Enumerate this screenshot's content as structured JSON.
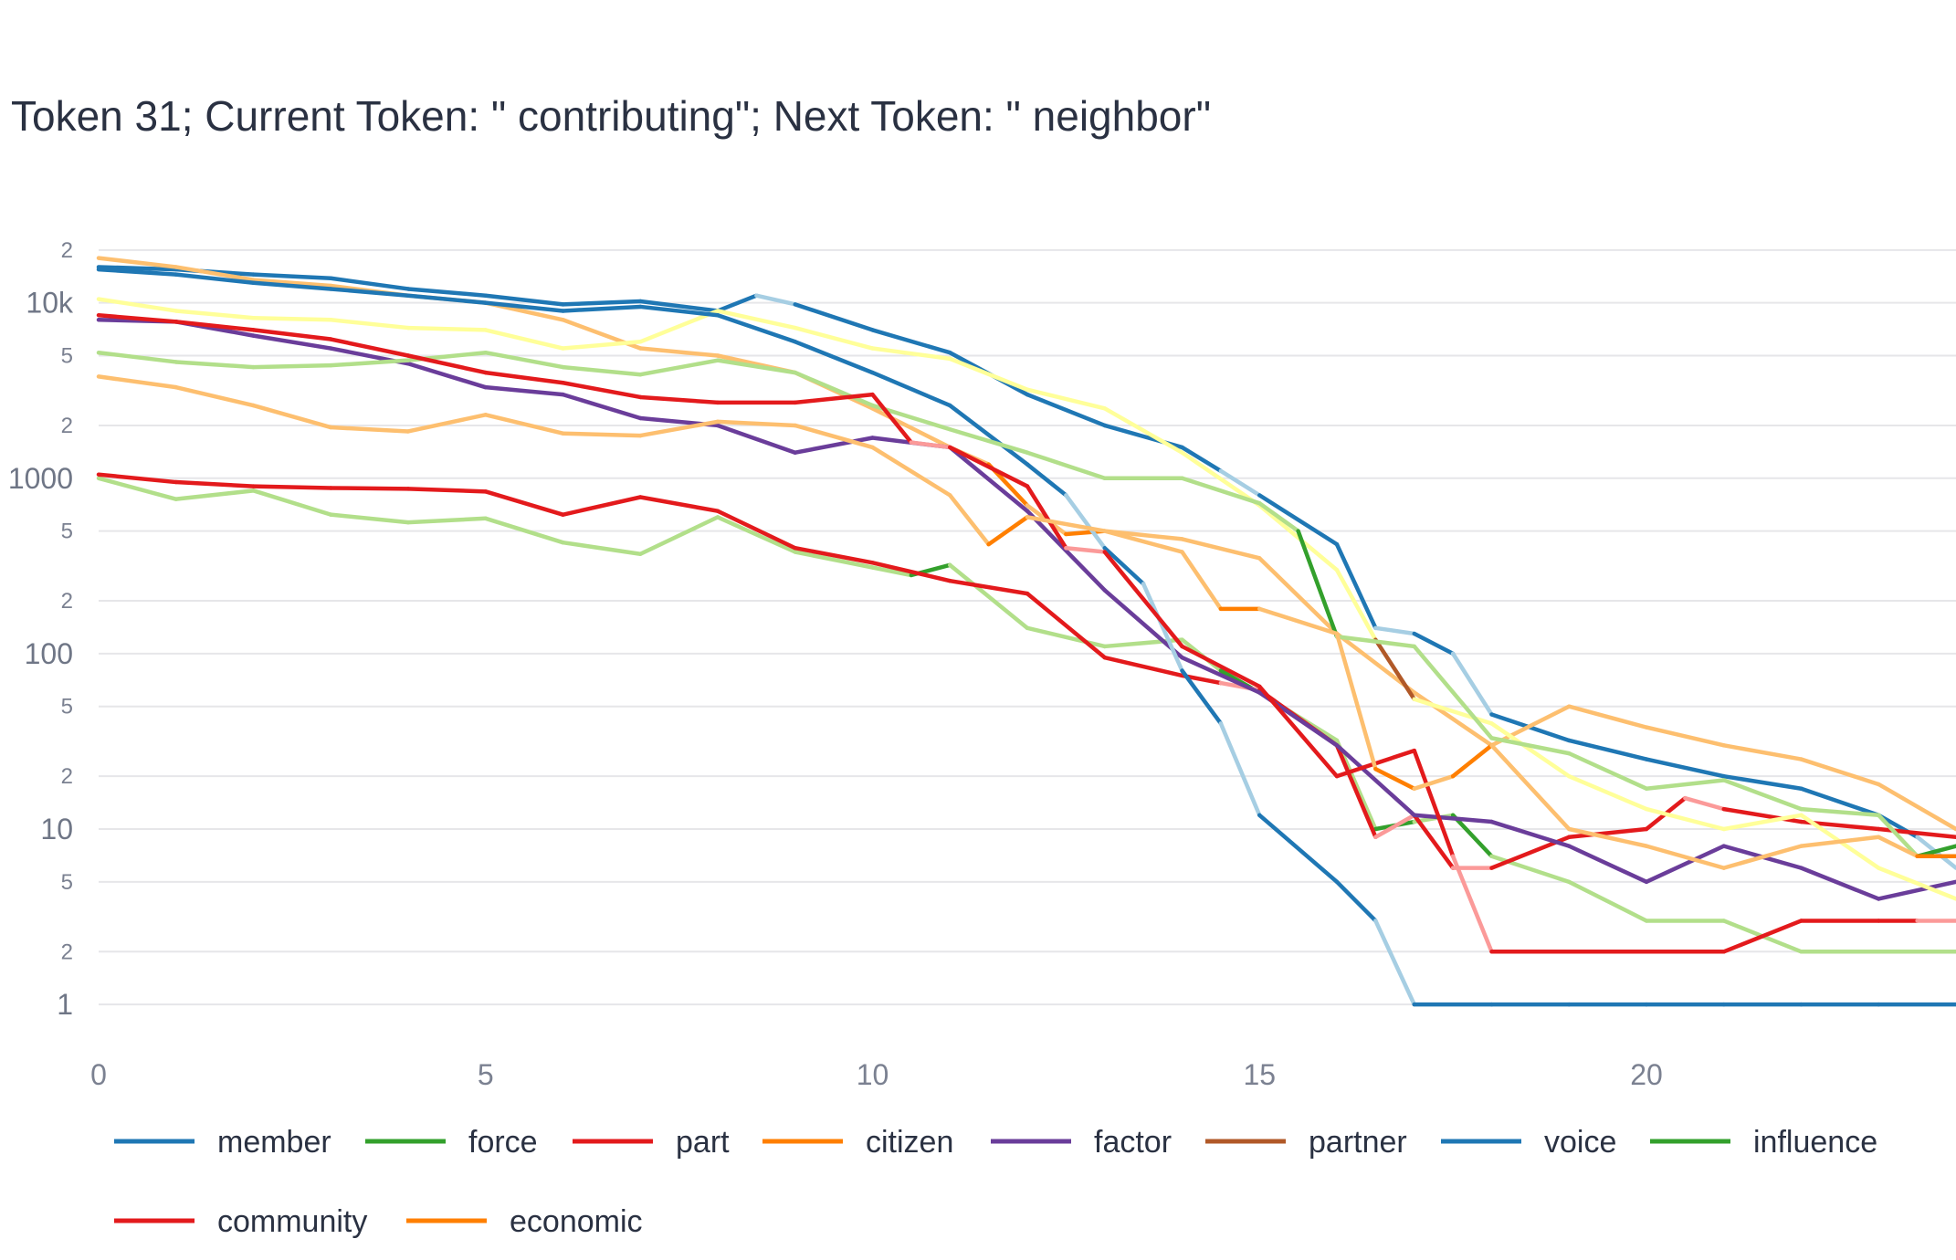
{
  "chart_data": {
    "type": "line",
    "title": "Token 31; Current Token: \" contributing\"; Next Token: \" neighbor\"",
    "xlabel": "",
    "ylabel": "",
    "y_scale": "log",
    "ylim": [
      0.55,
      30000
    ],
    "xlim": [
      0,
      24
    ],
    "x_ticks": [
      0,
      5,
      10,
      15,
      20
    ],
    "y_major_ticks": [
      {
        "value": 1,
        "label": "1"
      },
      {
        "value": 10,
        "label": "10"
      },
      {
        "value": 100,
        "label": "100"
      },
      {
        "value": 1000,
        "label": "1000"
      },
      {
        "value": 10000,
        "label": "10k"
      }
    ],
    "y_minor_ticks": [
      {
        "value": 2,
        "label": "2"
      },
      {
        "value": 5,
        "label": "5"
      },
      {
        "value": 20,
        "label": "2"
      },
      {
        "value": 50,
        "label": "5"
      },
      {
        "value": 200,
        "label": "2"
      },
      {
        "value": 500,
        "label": "5"
      },
      {
        "value": 2000,
        "label": "2"
      },
      {
        "value": 5000,
        "label": "5"
      },
      {
        "value": 20000,
        "label": "2"
      }
    ],
    "grid": true,
    "legend_position": "bottom",
    "series": [
      {
        "name": "member",
        "color": "#1f77b4",
        "light": "#a6cee3",
        "points": [
          [
            0,
            16000
          ],
          [
            1,
            15500
          ],
          [
            2,
            14500
          ],
          [
            3,
            13800
          ],
          [
            4,
            12000
          ],
          [
            5,
            11000
          ],
          [
            6,
            9800
          ],
          [
            7,
            10200
          ],
          [
            8,
            9000
          ],
          [
            8.5,
            11000
          ],
          [
            9,
            9800
          ],
          [
            10,
            7000
          ],
          [
            11,
            5200
          ],
          [
            12,
            3000
          ],
          [
            13,
            2000
          ],
          [
            14,
            1500
          ],
          [
            14.5,
            1100
          ],
          [
            15,
            800
          ],
          [
            16,
            420
          ],
          [
            16.5,
            140
          ],
          [
            17,
            130
          ],
          [
            17.5,
            100
          ],
          [
            18,
            45
          ],
          [
            19,
            32
          ],
          [
            20,
            25
          ],
          [
            21,
            20
          ],
          [
            22,
            17
          ],
          [
            23,
            12
          ],
          [
            23.5,
            9
          ],
          [
            24,
            6
          ]
        ]
      },
      {
        "name": "force",
        "color": "#33a02c",
        "light": "#b2df8a",
        "points": [
          [
            0,
            1000
          ],
          [
            1,
            760
          ],
          [
            2,
            850
          ],
          [
            3,
            620
          ],
          [
            4,
            560
          ],
          [
            5,
            590
          ],
          [
            6,
            430
          ],
          [
            7,
            370
          ],
          [
            8,
            600
          ],
          [
            9,
            380
          ],
          [
            10,
            310
          ],
          [
            10.5,
            280
          ],
          [
            11,
            320
          ],
          [
            12,
            140
          ],
          [
            13,
            110
          ],
          [
            14,
            120
          ],
          [
            14.5,
            80
          ],
          [
            15,
            60
          ],
          [
            16,
            32
          ],
          [
            16.5,
            10
          ],
          [
            17,
            11
          ],
          [
            17.5,
            12
          ],
          [
            18,
            7
          ],
          [
            19,
            5
          ],
          [
            20,
            3
          ],
          [
            21,
            3
          ],
          [
            22,
            2
          ],
          [
            24,
            2
          ]
        ]
      },
      {
        "name": "part",
        "color": "#e31a1c",
        "light": "#fb9a99",
        "points": [
          [
            0,
            1050
          ],
          [
            1,
            950
          ],
          [
            2,
            900
          ],
          [
            3,
            880
          ],
          [
            4,
            870
          ],
          [
            5,
            840
          ],
          [
            6,
            620
          ],
          [
            7,
            780
          ],
          [
            8,
            650
          ],
          [
            9,
            400
          ],
          [
            10,
            330
          ],
          [
            11,
            260
          ],
          [
            12,
            220
          ],
          [
            13,
            95
          ],
          [
            14,
            75
          ],
          [
            14.5,
            68
          ],
          [
            15,
            62
          ],
          [
            16,
            30
          ],
          [
            16.5,
            9
          ],
          [
            17,
            12
          ],
          [
            17.5,
            6
          ],
          [
            18,
            6
          ],
          [
            19,
            9
          ],
          [
            20,
            10
          ],
          [
            20.5,
            15
          ],
          [
            21,
            13
          ],
          [
            22,
            11
          ],
          [
            23,
            10
          ],
          [
            24,
            9
          ]
        ]
      },
      {
        "name": "citizen",
        "color": "#ff7f00",
        "light": "#fdbf6f",
        "points": [
          [
            0,
            18000
          ],
          [
            1,
            16000
          ],
          [
            2,
            13500
          ],
          [
            3,
            12500
          ],
          [
            4,
            11000
          ],
          [
            5,
            10000
          ],
          [
            6,
            8000
          ],
          [
            7,
            5500
          ],
          [
            8,
            5000
          ],
          [
            9,
            4000
          ],
          [
            10,
            2500
          ],
          [
            11,
            1500
          ],
          [
            11.5,
            1200
          ],
          [
            12,
            700
          ],
          [
            12.5,
            480
          ],
          [
            13,
            500
          ],
          [
            14,
            450
          ],
          [
            15,
            350
          ],
          [
            16,
            130
          ],
          [
            17,
            60
          ],
          [
            18,
            30
          ],
          [
            19,
            50
          ],
          [
            20,
            38
          ],
          [
            21,
            30
          ],
          [
            22,
            25
          ],
          [
            23,
            18
          ],
          [
            24,
            10
          ]
        ]
      },
      {
        "name": "factor",
        "color": "#6a3d9a",
        "light": "#cab2d6",
        "points": [
          [
            0,
            8000
          ],
          [
            1,
            7800
          ],
          [
            2,
            6500
          ],
          [
            3,
            5500
          ],
          [
            4,
            4500
          ],
          [
            5,
            3300
          ],
          [
            6,
            3000
          ],
          [
            7,
            2200
          ],
          [
            8,
            2000
          ],
          [
            9,
            1400
          ],
          [
            10,
            1700
          ],
          [
            11,
            1500
          ],
          [
            12,
            650
          ],
          [
            13,
            230
          ],
          [
            14,
            95
          ],
          [
            15,
            60
          ],
          [
            16,
            30
          ],
          [
            17,
            12
          ],
          [
            18,
            11
          ],
          [
            19,
            8
          ],
          [
            20,
            5
          ],
          [
            21,
            8
          ],
          [
            22,
            6
          ],
          [
            23,
            4
          ],
          [
            24,
            5
          ]
        ]
      },
      {
        "name": "partner",
        "color": "#b15928",
        "light": "#ffff99",
        "points": [
          [
            0,
            10500
          ],
          [
            1,
            9000
          ],
          [
            2,
            8200
          ],
          [
            3,
            8000
          ],
          [
            4,
            7200
          ],
          [
            5,
            7000
          ],
          [
            6,
            5500
          ],
          [
            7,
            6000
          ],
          [
            8,
            9000
          ],
          [
            9,
            7200
          ],
          [
            10,
            5500
          ],
          [
            11,
            4800
          ],
          [
            12,
            3200
          ],
          [
            13,
            2500
          ],
          [
            14,
            1400
          ],
          [
            15,
            700
          ],
          [
            16,
            300
          ],
          [
            16.5,
            120
          ],
          [
            17,
            55
          ],
          [
            18,
            40
          ],
          [
            19,
            20
          ],
          [
            20,
            13
          ],
          [
            21,
            10
          ],
          [
            22,
            12
          ],
          [
            23,
            6
          ],
          [
            24,
            4
          ]
        ]
      },
      {
        "name": "voice",
        "color": "#1f77b4",
        "light": "#a6cee3",
        "points": [
          [
            0,
            15500
          ],
          [
            1,
            14500
          ],
          [
            2,
            13000
          ],
          [
            3,
            12000
          ],
          [
            4,
            11000
          ],
          [
            5,
            10000
          ],
          [
            6,
            9000
          ],
          [
            7,
            9500
          ],
          [
            8,
            8500
          ],
          [
            9,
            6000
          ],
          [
            10,
            4000
          ],
          [
            11,
            2600
          ],
          [
            12,
            1200
          ],
          [
            12.5,
            800
          ],
          [
            13,
            400
          ],
          [
            13.5,
            250
          ],
          [
            14,
            80
          ],
          [
            14.5,
            40
          ],
          [
            15,
            12
          ],
          [
            16,
            5
          ],
          [
            16.5,
            3
          ],
          [
            17,
            1
          ],
          [
            18,
            1
          ],
          [
            19,
            1
          ],
          [
            20,
            1
          ],
          [
            21,
            1
          ],
          [
            22,
            1
          ],
          [
            23,
            1
          ],
          [
            24,
            1
          ]
        ]
      },
      {
        "name": "influence",
        "color": "#33a02c",
        "light": "#b2df8a",
        "points": [
          [
            0,
            5200
          ],
          [
            1,
            4600
          ],
          [
            2,
            4300
          ],
          [
            3,
            4400
          ],
          [
            4,
            4700
          ],
          [
            5,
            5200
          ],
          [
            6,
            4300
          ],
          [
            7,
            3900
          ],
          [
            8,
            4700
          ],
          [
            9,
            4000
          ],
          [
            10,
            2600
          ],
          [
            11,
            1900
          ],
          [
            12,
            1400
          ],
          [
            13,
            1000
          ],
          [
            14,
            1000
          ],
          [
            15,
            720
          ],
          [
            15.5,
            500
          ],
          [
            16,
            125
          ],
          [
            17,
            110
          ],
          [
            18,
            33
          ],
          [
            19,
            27
          ],
          [
            20,
            17
          ],
          [
            21,
            19
          ],
          [
            22,
            13
          ],
          [
            23,
            12
          ],
          [
            23.5,
            7
          ],
          [
            24,
            8
          ]
        ]
      },
      {
        "name": "community",
        "color": "#e31a1c",
        "light": "#fb9a99",
        "points": [
          [
            0,
            8500
          ],
          [
            1,
            7800
          ],
          [
            2,
            7000
          ],
          [
            3,
            6200
          ],
          [
            4,
            5000
          ],
          [
            5,
            4000
          ],
          [
            6,
            3500
          ],
          [
            7,
            2900
          ],
          [
            8,
            2700
          ],
          [
            9,
            2700
          ],
          [
            10,
            3000
          ],
          [
            10.5,
            1600
          ],
          [
            11,
            1500
          ],
          [
            12,
            900
          ],
          [
            12.5,
            400
          ],
          [
            13,
            380
          ],
          [
            14,
            110
          ],
          [
            15,
            65
          ],
          [
            16,
            20
          ],
          [
            17,
            28
          ],
          [
            17.5,
            7
          ],
          [
            18,
            2
          ],
          [
            19,
            2
          ],
          [
            20,
            2
          ],
          [
            21,
            2
          ],
          [
            22,
            3
          ],
          [
            23,
            3
          ],
          [
            23.5,
            3
          ],
          [
            24,
            3
          ]
        ]
      },
      {
        "name": "economic",
        "color": "#ff7f00",
        "light": "#fdbf6f",
        "points": [
          [
            0,
            3800
          ],
          [
            1,
            3300
          ],
          [
            2,
            2600
          ],
          [
            3,
            1950
          ],
          [
            4,
            1850
          ],
          [
            5,
            2300
          ],
          [
            6,
            1800
          ],
          [
            7,
            1750
          ],
          [
            8,
            2100
          ],
          [
            9,
            2000
          ],
          [
            10,
            1500
          ],
          [
            11,
            800
          ],
          [
            11.5,
            420
          ],
          [
            12,
            600
          ],
          [
            13,
            500
          ],
          [
            14,
            380
          ],
          [
            14.5,
            180
          ],
          [
            15,
            180
          ],
          [
            16,
            130
          ],
          [
            16.5,
            22
          ],
          [
            17,
            17
          ],
          [
            17.5,
            20
          ],
          [
            18,
            30
          ],
          [
            19,
            10
          ],
          [
            20,
            8
          ],
          [
            21,
            6
          ],
          [
            22,
            8
          ],
          [
            23,
            9
          ],
          [
            23.5,
            7
          ],
          [
            24,
            7
          ]
        ]
      }
    ]
  }
}
